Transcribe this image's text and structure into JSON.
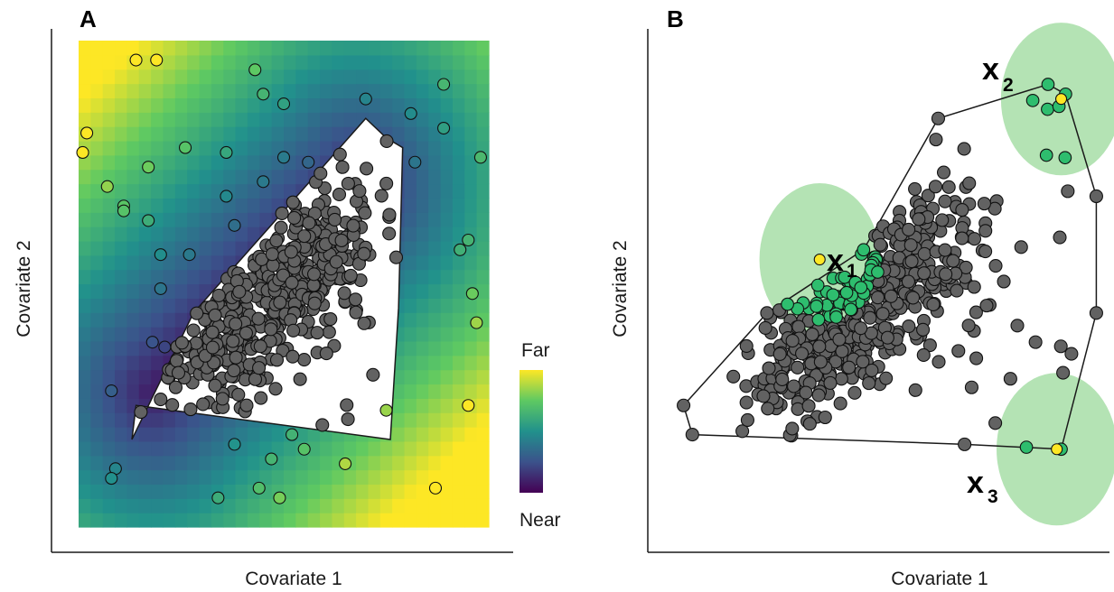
{
  "chart_data": [
    {
      "type": "scatter",
      "panel": "A",
      "xlabel": "Covariate 1",
      "ylabel": "Covariate 2",
      "xlim": [
        0,
        100
      ],
      "ylim": [
        0,
        100
      ],
      "background": "distance-to-hull heatmap (viridis)",
      "colorbar": {
        "min_label": "Near",
        "max_label": "Far",
        "colormap": "viridis"
      },
      "hull": [
        [
          13,
          18
        ],
        [
          14,
          25
        ],
        [
          76,
          18
        ],
        [
          78,
          45
        ],
        [
          79,
          78
        ],
        [
          75,
          80
        ],
        [
          70,
          84
        ],
        [
          28,
          44
        ]
      ],
      "series": [
        {
          "color": "#606060",
          "role": "in-sample",
          "points": "cloud inside hull"
        },
        {
          "color": "viridis-by-distance",
          "role": "out-of-sample",
          "points": [
            [
              14,
              96
            ],
            [
              19,
              96
            ],
            [
              43,
              94
            ],
            [
              45,
              89
            ],
            [
              50,
              87
            ],
            [
              70,
              88
            ],
            [
              89,
              91
            ],
            [
              81,
              85
            ],
            [
              89,
              82
            ],
            [
              2,
              81
            ],
            [
              1,
              77
            ],
            [
              26,
              78
            ],
            [
              36,
              77
            ],
            [
              50,
              76
            ],
            [
              56,
              75
            ],
            [
              82,
              75
            ],
            [
              98,
              76
            ],
            [
              17,
              74
            ],
            [
              7,
              70
            ],
            [
              36,
              68
            ],
            [
              45,
              71
            ],
            [
              11,
              66
            ],
            [
              11,
              65
            ],
            [
              17,
              63
            ],
            [
              38,
              62
            ],
            [
              20,
              56
            ],
            [
              27,
              56
            ],
            [
              93,
              57
            ],
            [
              95,
              59
            ],
            [
              20,
              49
            ],
            [
              96,
              48
            ],
            [
              18,
              38
            ],
            [
              97,
              42
            ],
            [
              21,
              37
            ],
            [
              8,
              28
            ],
            [
              95,
              25
            ],
            [
              75,
              24
            ],
            [
              38,
              17
            ],
            [
              55,
              16
            ],
            [
              47,
              14
            ],
            [
              52,
              19
            ],
            [
              65,
              13
            ],
            [
              9,
              12
            ],
            [
              8,
              10
            ],
            [
              34,
              6
            ],
            [
              44,
              8
            ],
            [
              49,
              6
            ],
            [
              87,
              8
            ]
          ]
        }
      ]
    },
    {
      "type": "scatter",
      "panel": "B",
      "xlabel": "Covariate 1",
      "ylabel": "Covariate 2",
      "xlim": [
        0,
        100
      ],
      "ylim": [
        0,
        100
      ],
      "hull": [
        [
          3,
          25
        ],
        [
          5,
          19
        ],
        [
          67,
          17
        ],
        [
          89,
          16
        ],
        [
          97,
          44
        ],
        [
          97,
          68
        ],
        [
          90,
          89
        ],
        [
          86,
          91
        ],
        [
          61,
          84
        ],
        [
          44,
          57
        ],
        [
          22,
          44
        ]
      ],
      "query_points": [
        {
          "label": "x",
          "subscript": "1",
          "x": 34,
          "y": 55,
          "radius": 14
        },
        {
          "label": "x",
          "subscript": "2",
          "x": 89,
          "y": 88,
          "radius": 14
        },
        {
          "label": "x",
          "subscript": "3",
          "x": 88,
          "y": 16,
          "radius": 14
        }
      ],
      "series": [
        {
          "color": "#606060",
          "role": "in-sample",
          "points": "cloud inside hull"
        },
        {
          "color": "#2ebd6e",
          "role": "neighbours within radius of query points"
        }
      ],
      "colors": {
        "query": "#fde725",
        "neighbour": "#2ebd6e",
        "radius_disc": "#9bd99b",
        "point": "#626262"
      }
    }
  ],
  "panel_a": {
    "letter": "A",
    "xlabel": "Covariate 1",
    "ylabel": "Covariate 2",
    "colorbar_top": "Far",
    "colorbar_bottom": "Near"
  },
  "panel_b": {
    "letter": "B",
    "xlabel": "Covariate 1",
    "ylabel": "Covariate 2",
    "q1_main": "x",
    "q1_sub": "1",
    "q2_main": "x",
    "q2_sub": "2",
    "q3_main": "x",
    "q3_sub": "3"
  }
}
